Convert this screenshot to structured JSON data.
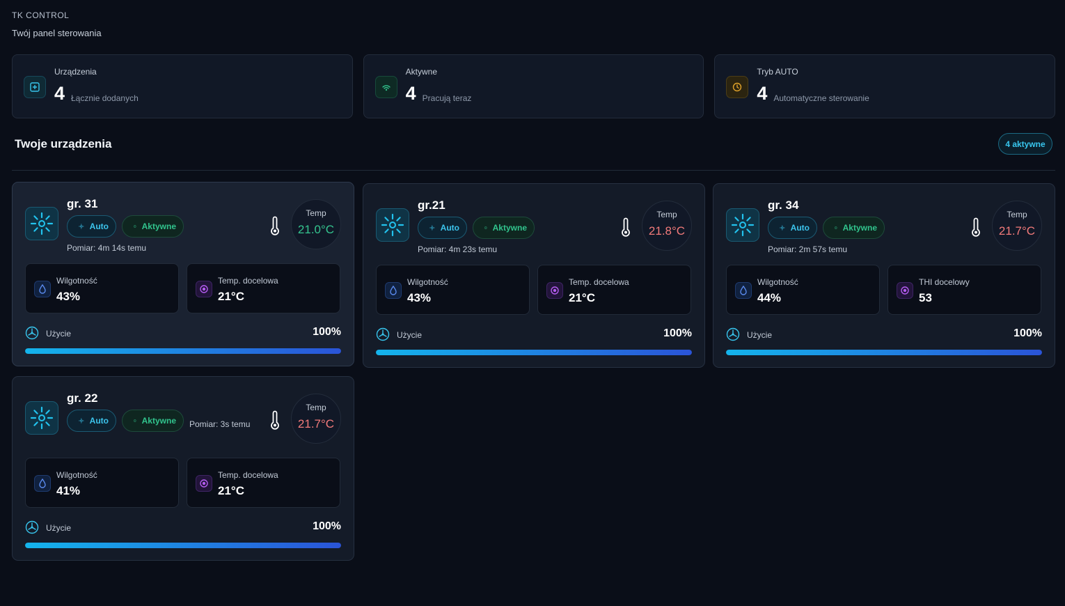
{
  "app": {
    "brand": "TK CONTROL",
    "subtitle": "Twój panel sterowania"
  },
  "stats": [
    {
      "title": "Urządzenia",
      "value": "4",
      "sub": "Łącznie dodanych",
      "icon": "plus-square-icon",
      "tone": "cyan"
    },
    {
      "title": "Aktywne",
      "value": "4",
      "sub": "Pracują teraz",
      "icon": "wifi-icon",
      "tone": "green"
    },
    {
      "title": "Tryb AUTO",
      "value": "4",
      "sub": "Automatyczne sterowanie",
      "icon": "clock-icon",
      "tone": "amber"
    }
  ],
  "section": {
    "title": "Twoje urządzenia",
    "active_badge": "4 aktywne"
  },
  "devices": [
    {
      "name": "gr. 31",
      "mode": "Auto",
      "status": "Aktywne",
      "measure": "Pomiar: 4m 14s temu",
      "temp_label": "Temp",
      "temp": "21.0°C",
      "temp_tone": "green",
      "metric1_label": "Wilgotność",
      "metric1_value": "43%",
      "metric2_label": "Temp. docelowa",
      "metric2_value": "21°C",
      "usage_label": "Użycie",
      "usage_pct": "100%",
      "usage_value": 1.0
    },
    {
      "name": "gr.21",
      "mode": "Auto",
      "status": "Aktywne",
      "measure": "Pomiar: 4m 23s temu",
      "temp_label": "Temp",
      "temp": "21.8°C",
      "temp_tone": "red",
      "metric1_label": "Wilgotność",
      "metric1_value": "43%",
      "metric2_label": "Temp. docelowa",
      "metric2_value": "21°C",
      "usage_label": "Użycie",
      "usage_pct": "100%",
      "usage_value": 1.0
    },
    {
      "name": "gr. 34",
      "mode": "Auto",
      "status": "Aktywne",
      "measure": "Pomiar: 2m 57s temu",
      "temp_label": "Temp",
      "temp": "21.7°C",
      "temp_tone": "red",
      "metric1_label": "Wilgotność",
      "metric1_value": "44%",
      "metric2_label": "THI docelowy",
      "metric2_value": "53",
      "usage_label": "Użycie",
      "usage_pct": "100%",
      "usage_value": 1.0
    },
    {
      "name": "gr. 22",
      "mode": "Auto",
      "status": "Aktywne",
      "measure": "Pomiar: 3s temu",
      "temp_label": "Temp",
      "temp": "21.7°C",
      "temp_tone": "red",
      "metric1_label": "Wilgotność",
      "metric1_value": "41%",
      "metric2_label": "Temp. docelowa",
      "metric2_value": "21°C",
      "usage_label": "Użycie",
      "usage_pct": "100%",
      "usage_value": 1.0
    }
  ],
  "colors": {
    "accent": "#38c6ee",
    "success": "#31c48d",
    "warm": "#f27a7a",
    "warning": "#e0a22a",
    "background": "#0a0e18"
  },
  "icons": {
    "device": "sun-icon",
    "thermometer": "thermometer-icon",
    "humidity": "droplet-icon",
    "target": "target-icon",
    "usage": "fan-icon",
    "auto": "sparkle-icon",
    "active": "square-icon"
  }
}
